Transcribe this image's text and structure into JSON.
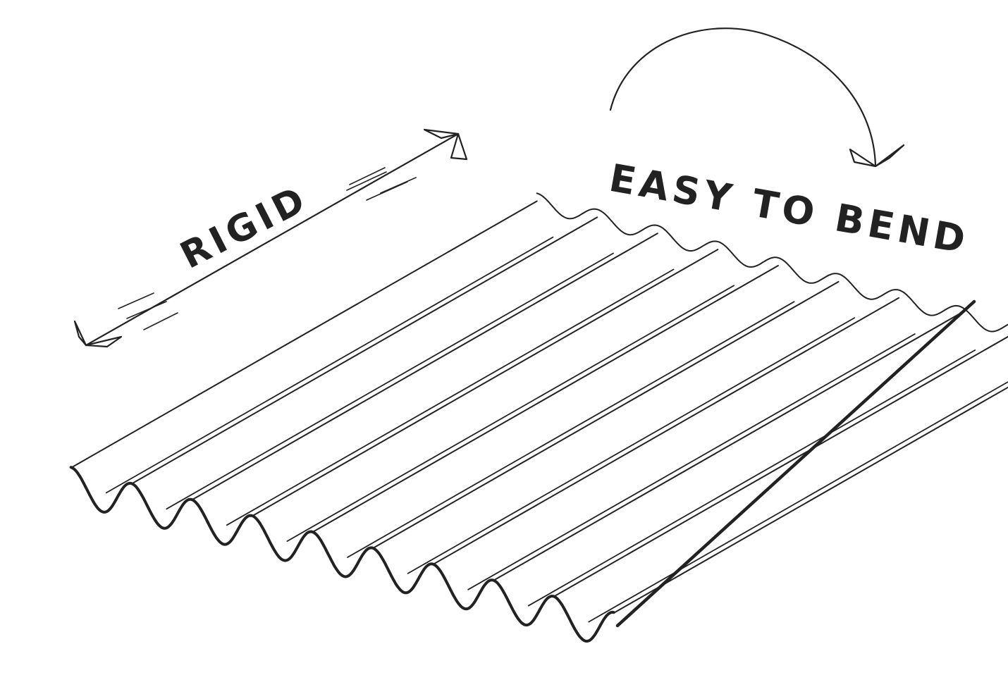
{
  "labels": {
    "rigid": "RIGID",
    "easy_to_bend": "EASY TO BEND"
  },
  "sheet": {
    "corrugation_count": 9
  },
  "colors": {
    "ink": "#222222",
    "paper": "#ffffff"
  }
}
